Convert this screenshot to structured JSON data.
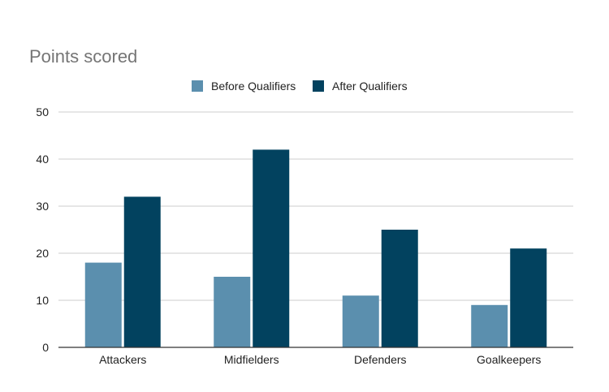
{
  "chart_data": {
    "type": "bar",
    "title": "Points scored",
    "xlabel": "",
    "ylabel": "",
    "categories": [
      "Attackers",
      "Midfielders",
      "Defenders",
      "Goalkeepers"
    ],
    "series": [
      {
        "name": "Before Qualifiers",
        "color": "#5b8fae",
        "values": [
          18,
          15,
          11,
          9
        ]
      },
      {
        "name": "After Qualifiers",
        "color": "#02425f",
        "values": [
          32,
          42,
          25,
          21
        ]
      }
    ],
    "ylim": [
      0,
      50
    ],
    "yticks": [
      "0",
      "10",
      "20",
      "30",
      "40",
      "50"
    ],
    "grid": true,
    "legend_position": "top-center"
  }
}
